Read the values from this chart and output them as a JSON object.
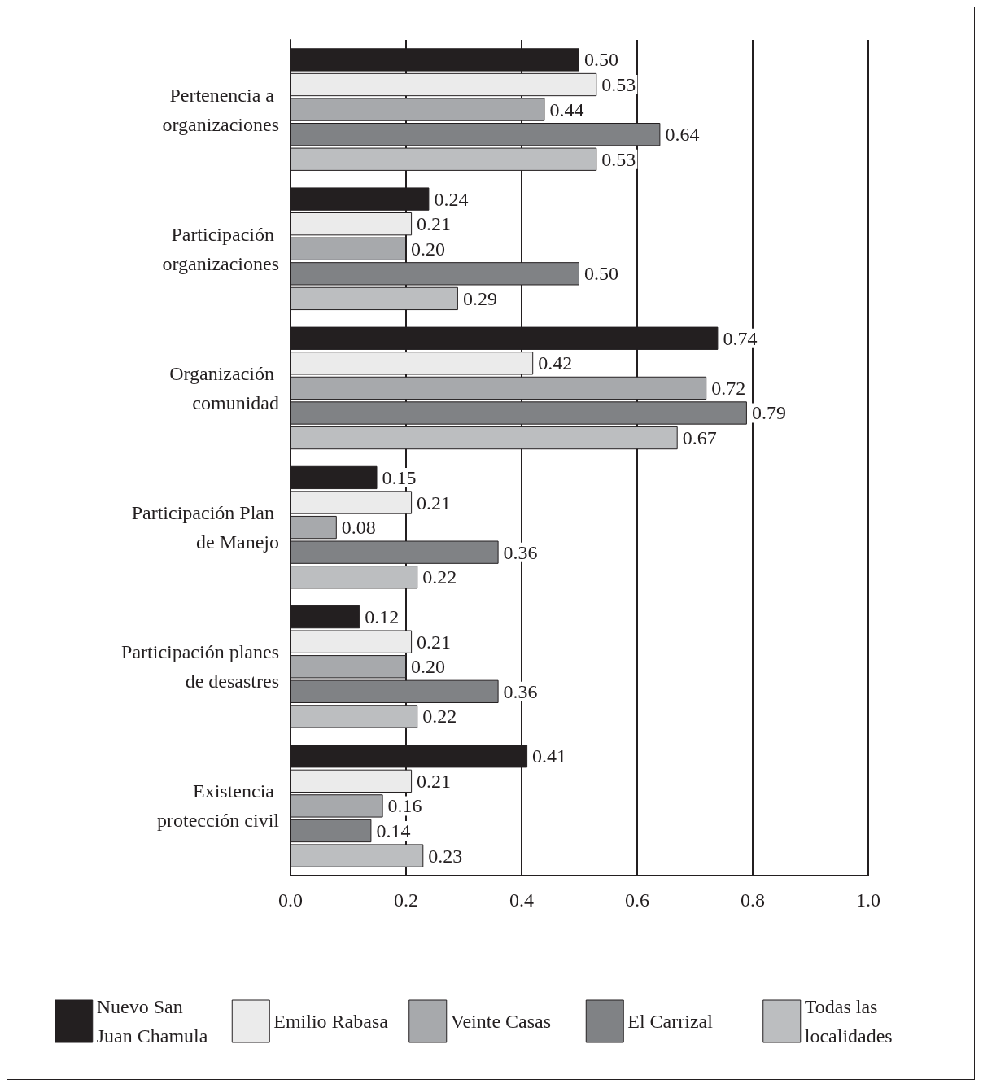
{
  "chart_data": {
    "type": "bar",
    "orientation": "horizontal",
    "categories": [
      "Pertenencia a organizaciones",
      "Participación organizaciones",
      "Organización comunidad",
      "Participación Plan de Manejo",
      "Participación planes de desastres",
      "Existencia protección civil"
    ],
    "series": [
      {
        "name": "Nuevo San Juan Chamula",
        "color": "#231f20",
        "values": [
          0.5,
          0.24,
          0.74,
          0.15,
          0.12,
          0.41
        ],
        "value_labels": [
          "0.50",
          "0.24",
          "0.74",
          "0.15",
          "0.12",
          "0.41"
        ]
      },
      {
        "name": "Emilio Rabasa",
        "color": "#ebebeb",
        "values": [
          0.53,
          0.21,
          0.42,
          0.21,
          0.21,
          0.21
        ],
        "value_labels": [
          "0.53",
          "0.21",
          "0.42",
          "0.21",
          "0.21",
          "0.21"
        ]
      },
      {
        "name": "Veinte Casas",
        "color": "#a7a9ac",
        "values": [
          0.44,
          0.2,
          0.72,
          0.08,
          0.2,
          0.16
        ],
        "value_labels": [
          "0.44",
          "0.20",
          "0.72",
          "0.08",
          "0.20",
          "0.16"
        ]
      },
      {
        "name": "El Carrizal",
        "color": "#808285",
        "values": [
          0.64,
          0.5,
          0.79,
          0.36,
          0.36,
          0.14
        ],
        "value_labels": [
          "0.64",
          "0.50",
          "0.79",
          "0.36",
          "0.36",
          "0.14"
        ]
      },
      {
        "name": "Todas las localidades",
        "color": "#bcbec0",
        "values": [
          0.53,
          0.29,
          0.67,
          0.22,
          0.22,
          0.23
        ],
        "value_labels": [
          "0.53",
          "0.29",
          "0.67",
          "0.22",
          "0.22",
          "0.23"
        ]
      }
    ],
    "xlim": [
      0,
      1
    ],
    "xticks": [
      {
        "value": 0,
        "label": "0.0"
      },
      {
        "value": 0.2,
        "label": "0.2"
      },
      {
        "value": 0.4,
        "label": "0.4"
      },
      {
        "value": 0.6,
        "label": "0.6"
      },
      {
        "value": 0.8,
        "label": "0.8"
      },
      {
        "value": 1,
        "label": "1.0"
      }
    ],
    "grid": "x",
    "legend": "bottom"
  }
}
